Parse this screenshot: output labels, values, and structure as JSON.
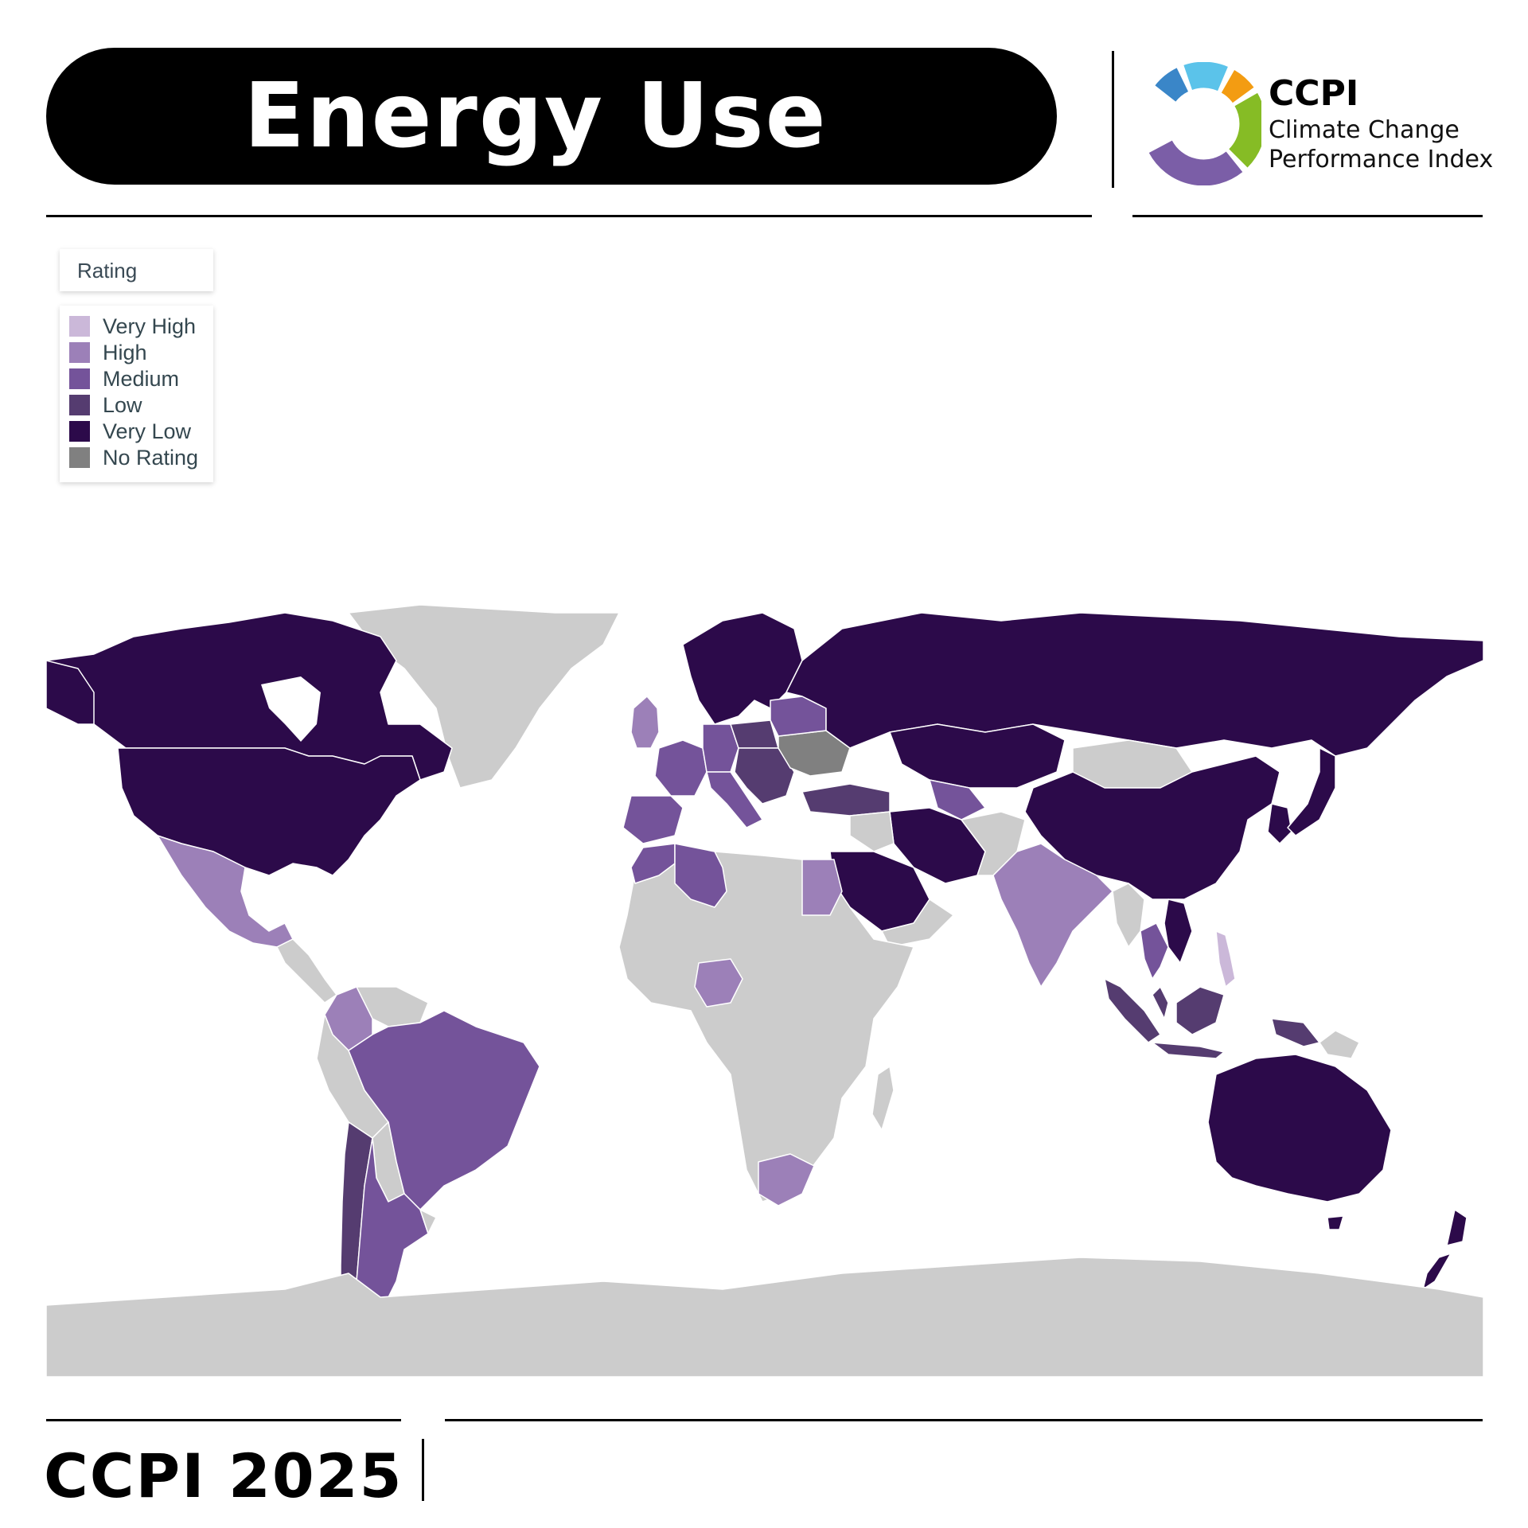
{
  "header": {
    "title": "Energy Use"
  },
  "logo": {
    "name": "CCPI",
    "subtitle_line1": "Climate Change",
    "subtitle_line2": "Performance Index",
    "segment_colors": [
      "#3a86c8",
      "#5bc3ea",
      "#f39c12",
      "#86bc25",
      "#7b5ea7"
    ]
  },
  "legend": {
    "title": "Rating",
    "items": [
      {
        "label": "Very High",
        "color": "#cbb8d9"
      },
      {
        "label": "High",
        "color": "#9c80b8"
      },
      {
        "label": "Medium",
        "color": "#74539a"
      },
      {
        "label": "Low",
        "color": "#553c70"
      },
      {
        "label": "Very Low",
        "color": "#2c0a4a"
      },
      {
        "label": "No Rating",
        "color": "#808080"
      }
    ]
  },
  "map": {
    "type": "choropleth",
    "unrated_color": "#cccccc",
    "regions": [
      {
        "name": "Canada",
        "rating": "Very Low"
      },
      {
        "name": "United States",
        "rating": "Very Low"
      },
      {
        "name": "Mexico",
        "rating": "High"
      },
      {
        "name": "Colombia",
        "rating": "High"
      },
      {
        "name": "Brazil",
        "rating": "Medium"
      },
      {
        "name": "Argentina",
        "rating": "Medium"
      },
      {
        "name": "Chile",
        "rating": "Low"
      },
      {
        "name": "Russia",
        "rating": "Very Low"
      },
      {
        "name": "Kazakhstan",
        "rating": "Very Low"
      },
      {
        "name": "China",
        "rating": "Very Low"
      },
      {
        "name": "Saudi Arabia",
        "rating": "Very Low"
      },
      {
        "name": "Iran",
        "rating": "Very Low"
      },
      {
        "name": "India",
        "rating": "High"
      },
      {
        "name": "Australia",
        "rating": "Very Low"
      },
      {
        "name": "New Zealand",
        "rating": "Very Low"
      },
      {
        "name": "Algeria",
        "rating": "Medium"
      },
      {
        "name": "Egypt",
        "rating": "High"
      },
      {
        "name": "Nigeria",
        "rating": "High"
      },
      {
        "name": "South Africa",
        "rating": "High"
      },
      {
        "name": "Turkey",
        "rating": "Low"
      },
      {
        "name": "Ukraine",
        "rating": "No Rating"
      },
      {
        "name": "Indonesia",
        "rating": "Low"
      },
      {
        "name": "Japan",
        "rating": "Very Low"
      },
      {
        "name": "Philippines",
        "rating": "Very High"
      },
      {
        "name": "Thailand",
        "rating": "Medium"
      }
    ]
  },
  "footer": {
    "title": "CCPI 2025"
  }
}
